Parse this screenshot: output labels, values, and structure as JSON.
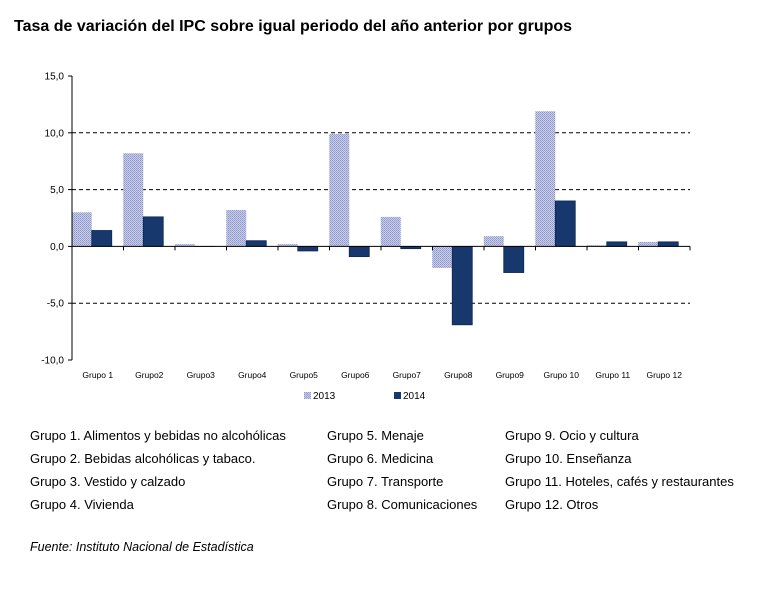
{
  "chart_data": {
    "type": "bar",
    "title": "Tasa de variación del IPC sobre igual periodo del año anterior por grupos",
    "categories": [
      "Grupo 1",
      "Grupo2",
      "Grupo3",
      "Grupo4",
      "Grupo5",
      "Grupo6",
      "Grupo7",
      "Grupo8",
      "Grupo9",
      "Grupo 10",
      "Grupo 11",
      "Grupo 12"
    ],
    "series": [
      {
        "name": "2013",
        "color": "#aeb6dc",
        "values": [
          3.0,
          8.2,
          0.2,
          3.2,
          0.2,
          9.9,
          2.6,
          -1.9,
          0.9,
          11.9,
          0.1,
          0.4
        ]
      },
      {
        "name": "2014",
        "color": "#17386d",
        "values": [
          1.4,
          2.6,
          0.0,
          0.5,
          -0.4,
          -0.9,
          -0.2,
          -6.9,
          -2.3,
          4.0,
          0.4,
          0.4
        ]
      }
    ],
    "ylim": [
      -10,
      15
    ],
    "yticks": [
      "15,0",
      "10,0",
      "5,0",
      "0,0",
      "-5,0",
      "-10,0"
    ],
    "ytick_values": [
      15,
      10,
      5,
      0,
      -5,
      -10
    ],
    "grid": "dashed",
    "legend_position": "bottom"
  },
  "group_legend": {
    "col1": [
      "Grupo 1. Alimentos y bebidas no alcohólicas",
      "Grupo 2. Bebidas alcohólicas y  tabaco.",
      "Grupo 3. Vestido y calzado",
      "Grupo 4. Vivienda"
    ],
    "col2": [
      "Grupo 5. Menaje",
      "Grupo 6. Medicina",
      "Grupo 7. Transporte",
      "Grupo 8. Comunicaciones"
    ],
    "col3": [
      "Grupo 9. Ocio y cultura",
      "Grupo 10. Enseñanza",
      "Grupo 11. Hoteles, cafés y restaurantes",
      "Grupo 12. Otros"
    ]
  },
  "source": "Fuente: Instituto Nacional de Estadística"
}
